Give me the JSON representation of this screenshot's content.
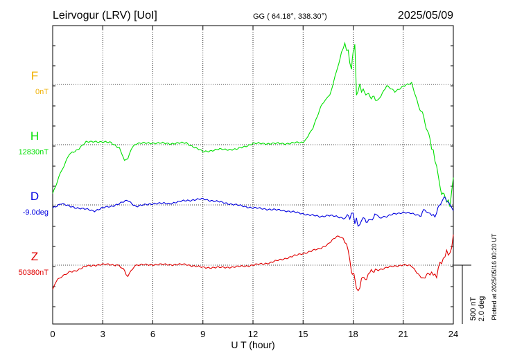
{
  "header": {
    "station": "Leirvogur (LRV)  [UoI]",
    "coords": "GG ( 64.18°, 338.30°)",
    "date": "2025/05/09"
  },
  "plotted_note": "Plotted at 2025/05/16 00:20 UT",
  "scale": {
    "nt": "500 nT",
    "deg": "2.0 deg"
  },
  "colors": {
    "F": "#f0b000",
    "H": "#00e000",
    "D": "#0000e0",
    "Z": "#e00000",
    "axis": "#000000"
  },
  "chart_data": {
    "type": "line",
    "xlabel": "U T (hour)",
    "xlim": [
      0,
      24
    ],
    "xticks": [
      "0",
      "3",
      "6",
      "9",
      "12",
      "15",
      "18",
      "21",
      "24"
    ],
    "grid": true,
    "series": [
      {
        "name": "F",
        "baseline_label": "0nT",
        "x": [],
        "y": []
      },
      {
        "name": "H",
        "baseline_label": "12830nT",
        "x": [
          0,
          0.3,
          0.6,
          1.0,
          1.5,
          2.0,
          2.5,
          3.0,
          3.5,
          4.0,
          4.3,
          4.5,
          4.7,
          5.0,
          6.0,
          7.0,
          8.0,
          9.0,
          10.0,
          11.0,
          12.0,
          13.0,
          14.0,
          15.0,
          15.3,
          15.6,
          16.0,
          16.3,
          16.6,
          17.0,
          17.3,
          17.5,
          17.7,
          17.9,
          18.0,
          18.1,
          18.2,
          18.4,
          18.6,
          19.0,
          19.5,
          20.0,
          20.5,
          21.0,
          21.5,
          22.0,
          22.3,
          22.6,
          22.8,
          23.0,
          23.3,
          23.6,
          23.8,
          24.0
        ],
        "y": [
          -420,
          -300,
          -200,
          -80,
          -40,
          20,
          30,
          20,
          20,
          -30,
          -130,
          -120,
          -40,
          10,
          15,
          10,
          15,
          -60,
          -40,
          -40,
          10,
          10,
          10,
          20,
          70,
          150,
          300,
          380,
          420,
          620,
          780,
          860,
          780,
          640,
          780,
          860,
          420,
          500,
          450,
          400,
          380,
          500,
          450,
          500,
          520,
          300,
          200,
          40,
          -70,
          -180,
          -420,
          -460,
          -520,
          -280
        ]
      },
      {
        "name": "D",
        "baseline_label": "-9.0deg",
        "x": [
          0,
          0.5,
          1.0,
          1.5,
          2.0,
          2.5,
          3.0,
          3.5,
          4.0,
          4.5,
          5.0,
          6.0,
          7.0,
          8.0,
          9.0,
          10.0,
          11.0,
          12.0,
          13.0,
          14.0,
          15.0,
          15.5,
          16.0,
          16.5,
          17.0,
          17.5,
          17.8,
          18.0,
          18.1,
          18.2,
          18.3,
          18.5,
          18.7,
          19.0,
          19.3,
          19.6,
          20.0,
          20.5,
          21.0,
          21.5,
          22.0,
          22.3,
          22.6,
          22.8,
          23.0,
          23.3,
          23.6,
          23.8,
          24.0
        ],
        "y": [
          -0.1,
          0.05,
          -0.05,
          -0.1,
          -0.15,
          -0.2,
          -0.1,
          -0.05,
          0.05,
          0.15,
          -0.05,
          0.05,
          0.05,
          0.15,
          0.2,
          0.1,
          0.0,
          -0.1,
          -0.15,
          -0.2,
          -0.3,
          -0.35,
          -0.4,
          -0.35,
          -0.4,
          -0.45,
          -0.4,
          -0.25,
          -0.7,
          -0.35,
          -0.8,
          -0.5,
          -0.45,
          -0.6,
          -0.3,
          -0.45,
          -0.4,
          -0.3,
          -0.25,
          -0.3,
          -0.35,
          -0.2,
          -0.25,
          -0.4,
          -0.3,
          0.2,
          0.15,
          0.0,
          -0.2
        ]
      },
      {
        "name": "Z",
        "baseline_label": "50380nT",
        "x": [
          0,
          0.3,
          0.6,
          1.0,
          1.5,
          2.0,
          2.5,
          3.0,
          3.5,
          4.0,
          4.3,
          4.5,
          4.7,
          5.0,
          6.0,
          7.0,
          8.0,
          9.0,
          10.0,
          11.0,
          12.0,
          13.0,
          14.0,
          15.0,
          15.5,
          16.0,
          16.5,
          17.0,
          17.3,
          17.5,
          17.7,
          17.9,
          18.0,
          18.1,
          18.3,
          18.5,
          18.8,
          19.0,
          19.5,
          20.0,
          20.5,
          21.0,
          21.5,
          22.0,
          22.3,
          22.6,
          22.8,
          23.0,
          23.2,
          23.4,
          23.6,
          23.8,
          24.0
        ],
        "y": [
          -200,
          -120,
          -90,
          -60,
          -40,
          -10,
          0,
          5,
          5,
          0,
          -50,
          -100,
          -40,
          0,
          5,
          5,
          5,
          -20,
          -20,
          -15,
          0,
          20,
          60,
          100,
          120,
          140,
          180,
          240,
          240,
          200,
          130,
          -50,
          -80,
          -120,
          -240,
          -120,
          -100,
          -70,
          -40,
          -20,
          -10,
          5,
          -10,
          -90,
          -110,
          -60,
          -80,
          -90,
          20,
          40,
          120,
          80,
          260
        ]
      }
    ]
  }
}
